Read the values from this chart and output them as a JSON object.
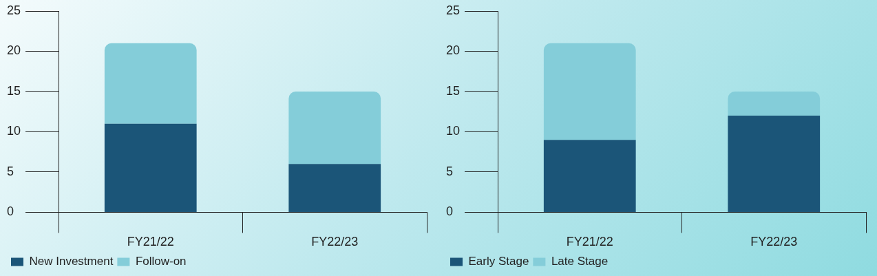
{
  "chart_data": [
    {
      "type": "bar",
      "stacked": true,
      "categories": [
        "FY21/22",
        "FY22/23"
      ],
      "series": [
        {
          "name": "New Investment",
          "color": "#1b5578",
          "values": [
            11,
            6
          ]
        },
        {
          "name": "Follow-on",
          "color": "#84cdd9",
          "values": [
            10,
            9
          ]
        }
      ],
      "ylim": [
        0,
        25
      ],
      "yticks": [
        0,
        5,
        10,
        15,
        20,
        25
      ],
      "grid": false,
      "legend": "bottom left"
    },
    {
      "type": "bar",
      "stacked": true,
      "categories": [
        "FY21/22",
        "FY22/23"
      ],
      "series": [
        {
          "name": "Early Stage",
          "color": "#1b5578",
          "values": [
            9,
            12
          ]
        },
        {
          "name": "Late Stage",
          "color": "#84cdd9",
          "values": [
            12,
            3
          ]
        }
      ],
      "ylim": [
        0,
        25
      ],
      "yticks": [
        0,
        5,
        10,
        15,
        20,
        25
      ],
      "grid": false,
      "legend": "bottom left"
    }
  ]
}
